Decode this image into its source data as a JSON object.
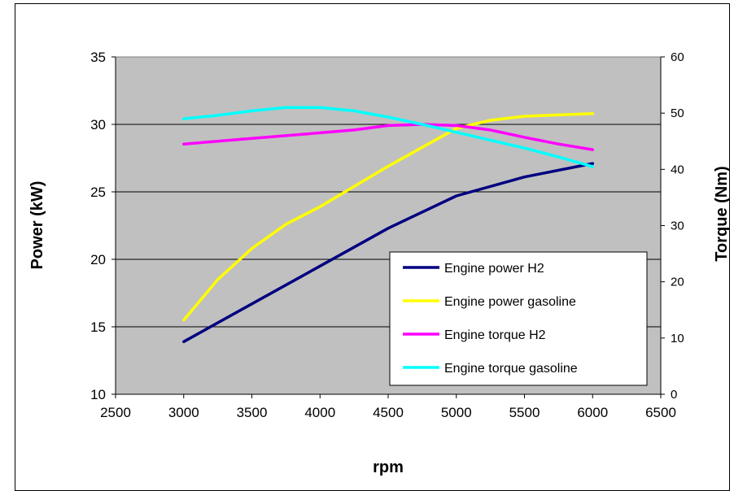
{
  "chart_data": {
    "type": "line",
    "xlabel": "rpm",
    "ylabel": "Power (kW)",
    "y2label": "Torque (Nm)",
    "xlim": [
      2500,
      6500
    ],
    "ylim": [
      10,
      35
    ],
    "y2lim": [
      0,
      60
    ],
    "xticks": [
      "2500",
      "3000",
      "3500",
      "4000",
      "4500",
      "5000",
      "5500",
      "6000",
      "6500"
    ],
    "yticks": [
      "10",
      "15",
      "20",
      "25",
      "30",
      "35"
    ],
    "y2ticks": [
      "0",
      "10",
      "20",
      "30",
      "40",
      "50",
      "60"
    ],
    "grid": "horizontal",
    "legend_position": "bottom-right",
    "plot_background": "#C0C0C0",
    "series": [
      {
        "name": "Engine power H2",
        "axis": "left",
        "color": "#000080",
        "x": [
          3000,
          3500,
          4000,
          4500,
          5000,
          5500,
          6000
        ],
        "y": [
          13.9,
          16.7,
          19.5,
          22.3,
          24.7,
          26.1,
          27.1
        ]
      },
      {
        "name": "Engine power gasoline",
        "axis": "left",
        "color": "#FFFF00",
        "x": [
          3000,
          3250,
          3500,
          3750,
          4000,
          4250,
          4500,
          4750,
          5000,
          5250,
          5500,
          5750,
          6000
        ],
        "y": [
          15.5,
          18.5,
          20.8,
          22.6,
          23.9,
          25.4,
          26.9,
          28.3,
          29.7,
          30.3,
          30.6,
          30.7,
          30.8
        ]
      }
    ],
    "series_right": [
      {
        "name": "Engine torque H2",
        "axis": "right",
        "color": "#FF00FF",
        "x": [
          3000,
          3500,
          4000,
          4250,
          4500,
          4750,
          5000,
          5250,
          5500,
          5750,
          6000
        ],
        "y": [
          44.5,
          45.5,
          46.5,
          47.0,
          47.8,
          48.0,
          47.8,
          47.0,
          45.7,
          44.5,
          43.5
        ]
      },
      {
        "name": "Engine torque gasoline",
        "axis": "right",
        "color": "#00FFFF",
        "x": [
          3000,
          3250,
          3500,
          3750,
          4000,
          4250,
          4500,
          4750,
          5000,
          5250,
          5500,
          5750,
          6000
        ],
        "y": [
          49.0,
          49.6,
          50.4,
          51.0,
          51.0,
          50.4,
          49.3,
          48.0,
          46.6,
          45.2,
          43.8,
          42.2,
          40.5
        ]
      }
    ]
  }
}
